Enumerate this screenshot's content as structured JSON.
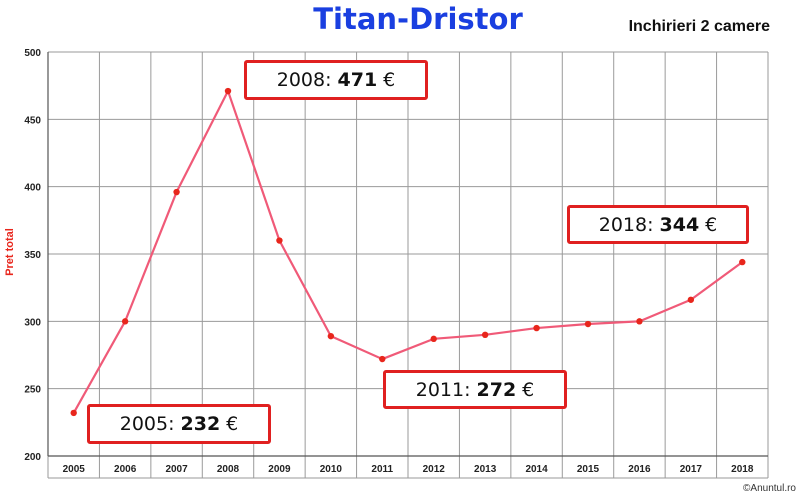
{
  "title": "Titan-Dristor",
  "subtitle": "Inchirieri 2 camere",
  "credit": "©Anuntul.ro",
  "colors": {
    "title": "#1a3fe0",
    "line": "#f05a78",
    "point": "#e8261c",
    "callout_border": "#e02020",
    "ylabel": "#e8261c"
  },
  "callouts": {
    "y2005": {
      "year": "2005:",
      "value": "232",
      "currency": "€"
    },
    "y2008": {
      "year": "2008:",
      "value": "471",
      "currency": "€"
    },
    "y2011": {
      "year": "2011:",
      "value": "272",
      "currency": "€"
    },
    "y2018": {
      "year": "2018:",
      "value": "344",
      "currency": "€"
    }
  },
  "chart_data": {
    "type": "line",
    "title": "Titan-Dristor",
    "subtitle": "Inchirieri 2 camere",
    "xlabel": "",
    "ylabel": "Pret total",
    "categories": [
      "2005",
      "2006",
      "2007",
      "2008",
      "2009",
      "2010",
      "2011",
      "2012",
      "2013",
      "2014",
      "2015",
      "2016",
      "2017",
      "2018"
    ],
    "series": [
      {
        "values": [
          232,
          300,
          396,
          471,
          360,
          289,
          272,
          287,
          290,
          295,
          298,
          300,
          316,
          344
        ]
      }
    ],
    "ylim": [
      200,
      500
    ],
    "yticks": [
      200,
      250,
      300,
      350,
      400,
      450,
      500
    ],
    "grid": true
  }
}
